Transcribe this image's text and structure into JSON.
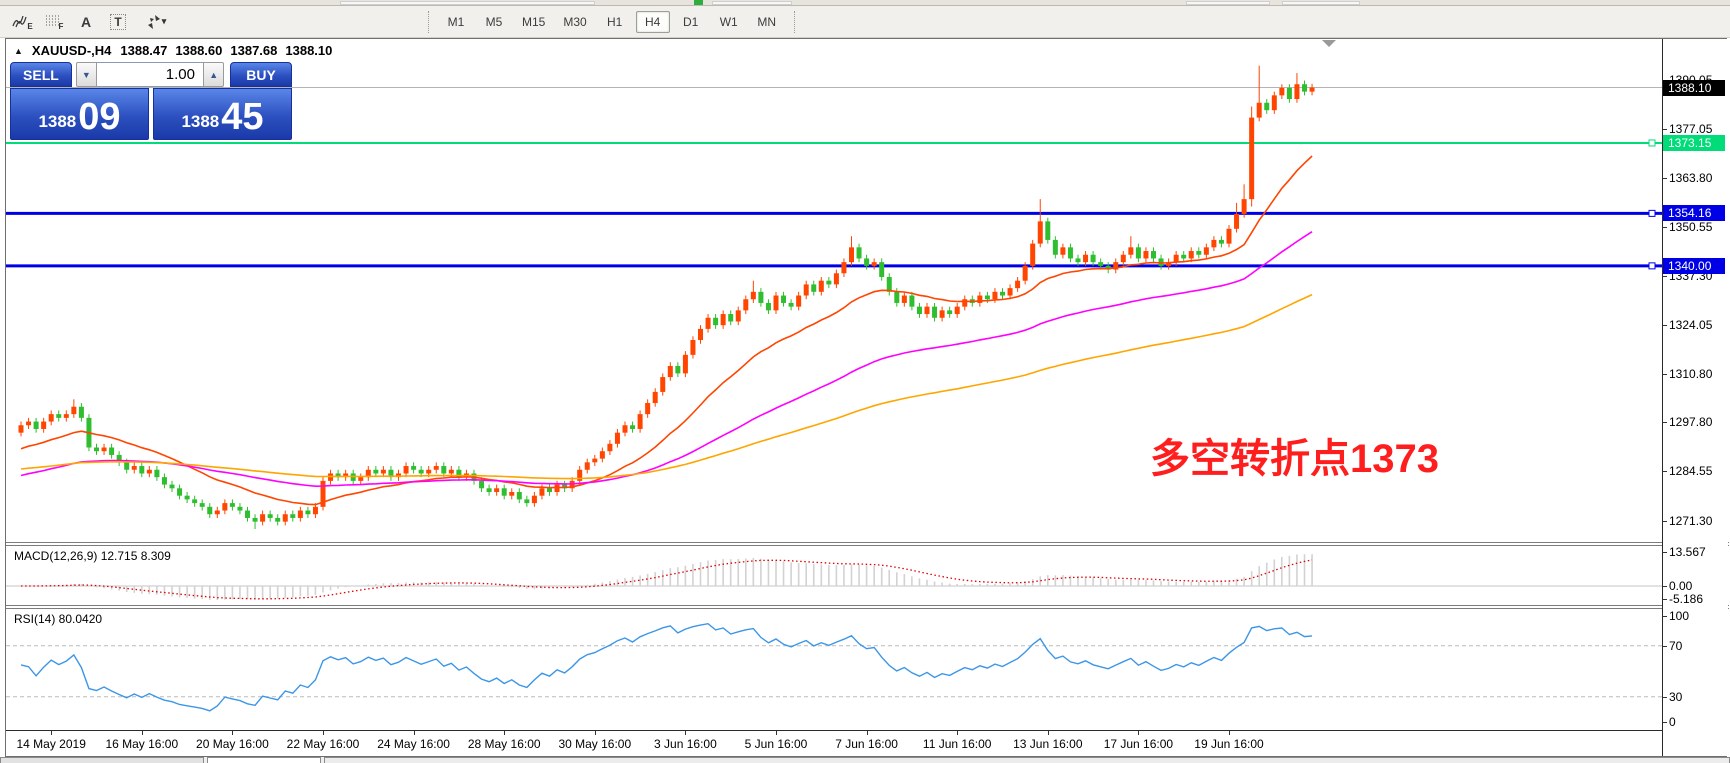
{
  "toolbar": {
    "tools": [
      {
        "name": "freehand-draw-icon",
        "sub": "E"
      },
      {
        "name": "grid-pattern-icon",
        "sub": "F"
      },
      {
        "name": "text-label-icon",
        "glyph": "A"
      },
      {
        "name": "text-box-icon",
        "glyph": "T"
      },
      {
        "name": "arrow-tools-icon",
        "caret": "▾"
      }
    ],
    "timeframes": [
      "M1",
      "M5",
      "M15",
      "M30",
      "H1",
      "H4",
      "D1",
      "W1",
      "MN"
    ],
    "active_timeframe": "H4"
  },
  "chart_header": {
    "collapse_icon": "▲",
    "symbol": "XAUUSD-,H4",
    "open": "1388.47",
    "high": "1388.60",
    "low": "1387.68",
    "close": "1388.10"
  },
  "trade_panel": {
    "sell_label": "SELL",
    "buy_label": "BUY",
    "volume": "1.00",
    "spinner_down": "▼",
    "spinner_up": "▲",
    "sell_price_small": "1388",
    "sell_price_big": "09",
    "buy_price_small": "1388",
    "buy_price_big": "45"
  },
  "annotation": {
    "text": "多空转折点1373",
    "color": "#ff1e1e"
  },
  "price_axis": {
    "ticks": [
      "1390.05",
      "1377.05",
      "1363.80",
      "1350.55",
      "1337.30",
      "1324.05",
      "1310.80",
      "1297.80",
      "1284.55",
      "1271.30"
    ],
    "current_price_label": "1388.10",
    "current_chip_bg": "#000000"
  },
  "levels": [
    {
      "label": "1373.15",
      "value": 1373.15,
      "color": "#00dc78",
      "width": 2
    },
    {
      "label": "1354.16",
      "value": 1354.16,
      "color": "#0000e6",
      "width": 3
    },
    {
      "label": "1340.00",
      "value": 1340.0,
      "color": "#0000e6",
      "width": 3
    }
  ],
  "macd_panel": {
    "label": "MACD(12,26,9) 12.715 8.309",
    "ticks": [
      "13.567",
      "0.00",
      "-5.186"
    ],
    "tick_values": [
      13.567,
      0,
      -5.186
    ]
  },
  "rsi_panel": {
    "label": "RSI(14) 80.0420",
    "ticks": [
      "100",
      "70",
      "30",
      "0"
    ],
    "tick_values": [
      100,
      70,
      30,
      0
    ],
    "levels": [
      70,
      30
    ]
  },
  "time_axis": {
    "labels": [
      "14 May 2019",
      "16 May 16:00",
      "20 May 16:00",
      "22 May 16:00",
      "24 May 16:00",
      "28 May 16:00",
      "30 May 16:00",
      "3 Jun 16:00",
      "5 Jun 16:00",
      "7 Jun 16:00",
      "11 Jun 16:00",
      "13 Jun 16:00",
      "17 Jun 16:00",
      "19 Jun 16:00"
    ],
    "first_label_bar": 4,
    "bars_per_label": 12
  },
  "chart_data": {
    "type": "candlestick",
    "symbol": "XAUUSD-",
    "timeframe": "H4",
    "up_color": "#ff4500",
    "down_color": "#2fbe2f",
    "first_open": 1295,
    "default_wick": 1.0,
    "closes": [
      1297,
      1298,
      1296,
      1298,
      1300,
      1299,
      1300,
      1302,
      1299,
      1291,
      1290,
      1291,
      1289,
      1287,
      1285,
      1286,
      1284,
      1285,
      1283,
      1281,
      1280,
      1278,
      1277,
      1276,
      1275,
      1273,
      1274,
      1276,
      1275,
      1274,
      1272,
      1271,
      1273,
      1272,
      1271,
      1273,
      1272,
      1274,
      1273,
      1275,
      1282,
      1284,
      1283,
      1284,
      1282,
      1283,
      1285,
      1284,
      1285,
      1283,
      1284,
      1286,
      1285,
      1284,
      1285,
      1286,
      1284,
      1285,
      1283,
      1284,
      1282,
      1280,
      1279,
      1280,
      1278,
      1279,
      1277,
      1276,
      1278,
      1280,
      1279,
      1281,
      1280,
      1282,
      1285,
      1287,
      1288,
      1290,
      1292,
      1295,
      1297,
      1296,
      1300,
      1303,
      1306,
      1310,
      1313,
      1311,
      1316,
      1320,
      1323,
      1326,
      1324,
      1327,
      1325,
      1328,
      1331,
      1333,
      1330,
      1328,
      1332,
      1330,
      1329,
      1332,
      1335,
      1333,
      1336,
      1335,
      1338,
      1341,
      1345,
      1342,
      1340,
      1341,
      1337,
      1333,
      1330,
      1332,
      1329,
      1327,
      1329,
      1326,
      1328,
      1327,
      1329,
      1331,
      1330,
      1332,
      1331,
      1333,
      1332,
      1334,
      1336,
      1340,
      1346,
      1352,
      1347,
      1343,
      1345,
      1342,
      1341,
      1343,
      1341,
      1340,
      1339,
      1341,
      1343,
      1345,
      1342,
      1344,
      1342,
      1340,
      1341,
      1343,
      1342,
      1344,
      1343,
      1345,
      1347,
      1346,
      1350,
      1354,
      1358,
      1380,
      1384,
      1382,
      1386,
      1388,
      1385,
      1389,
      1387,
      1388.1
    ],
    "wick_overrides": {
      "7": [
        1304,
        null
      ],
      "31": [
        null,
        1269
      ],
      "97": [
        1336,
        null
      ],
      "110": [
        1348,
        null
      ],
      "135": [
        1358,
        null
      ],
      "147": [
        1348,
        null
      ],
      "161": [
        1357,
        null
      ],
      "162": [
        1362,
        null
      ],
      "163": [
        1383,
        1356
      ],
      "164": [
        1394,
        null
      ],
      "169": [
        1392,
        null
      ]
    },
    "moving_averages": [
      {
        "period": 20,
        "color": "#ff4500",
        "seed": 1290
      },
      {
        "period": 60,
        "color": "#ff00ff",
        "seed": 1283
      },
      {
        "period": 120,
        "color": "#ffa500",
        "seed": 1285
      }
    ],
    "macd": {
      "fast": 12,
      "slow": 26,
      "signal": 9,
      "hist_color": "#d2d2d2",
      "hist_stroke": "#ababab",
      "signal_color": "#e00000",
      "current": "12.715",
      "current_signal": "8.309"
    },
    "rsi": {
      "period": 14,
      "color": "#3c96e8",
      "current": "80.0420",
      "level_color": "#bcbcbc"
    },
    "current_price": 1388.1,
    "current_price_line_color": "#b4b4b4"
  }
}
